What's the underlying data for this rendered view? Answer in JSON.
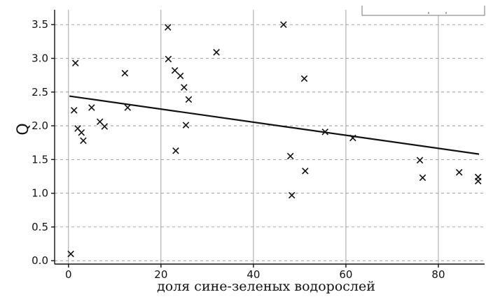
{
  "chart_data": {
    "type": "scatter",
    "xlabel": "доля сине-зеленых водорослей",
    "ylabel": "Q",
    "xlim": [
      -3,
      90
    ],
    "ylim": [
      -0.05,
      3.72
    ],
    "xticks": [
      0,
      20,
      40,
      60,
      80
    ],
    "yticks": [
      0.0,
      0.5,
      1.0,
      1.5,
      2.0,
      2.5,
      3.0,
      3.5
    ],
    "xtick_labels": [
      "0",
      "20",
      "40",
      "60",
      "80"
    ],
    "ytick_labels": [
      "0.0",
      "0.5",
      "1.0",
      "1.5",
      "2.0",
      "2.5",
      "3.0",
      "3.5"
    ],
    "grid": true,
    "marker": "x",
    "points": [
      {
        "x": 0.5,
        "y": 0.1
      },
      {
        "x": 1.2,
        "y": 2.23
      },
      {
        "x": 1.5,
        "y": 2.93
      },
      {
        "x": 2.0,
        "y": 1.96
      },
      {
        "x": 2.8,
        "y": 1.9
      },
      {
        "x": 3.2,
        "y": 1.78
      },
      {
        "x": 5.0,
        "y": 2.27
      },
      {
        "x": 6.8,
        "y": 2.06
      },
      {
        "x": 7.8,
        "y": 1.99
      },
      {
        "x": 12.2,
        "y": 2.78
      },
      {
        "x": 12.8,
        "y": 2.27
      },
      {
        "x": 21.5,
        "y": 3.46
      },
      {
        "x": 21.6,
        "y": 2.99
      },
      {
        "x": 23.0,
        "y": 2.82
      },
      {
        "x": 23.2,
        "y": 1.63
      },
      {
        "x": 24.2,
        "y": 2.74
      },
      {
        "x": 25.0,
        "y": 2.57
      },
      {
        "x": 25.4,
        "y": 2.01
      },
      {
        "x": 26.0,
        "y": 2.39
      },
      {
        "x": 32.0,
        "y": 3.09
      },
      {
        "x": 46.5,
        "y": 3.5
      },
      {
        "x": 48.0,
        "y": 1.55
      },
      {
        "x": 48.3,
        "y": 0.97
      },
      {
        "x": 51.0,
        "y": 2.7
      },
      {
        "x": 51.2,
        "y": 1.33
      },
      {
        "x": 55.5,
        "y": 1.91
      },
      {
        "x": 61.5,
        "y": 1.82
      },
      {
        "x": 76.0,
        "y": 1.49
      },
      {
        "x": 76.6,
        "y": 1.23
      },
      {
        "x": 84.5,
        "y": 1.31
      },
      {
        "x": 88.6,
        "y": 1.24
      },
      {
        "x": 88.6,
        "y": 1.18
      }
    ],
    "trend_line": {
      "x": [
        0.2,
        88.8
      ],
      "y": [
        2.44,
        1.58
      ]
    }
  }
}
